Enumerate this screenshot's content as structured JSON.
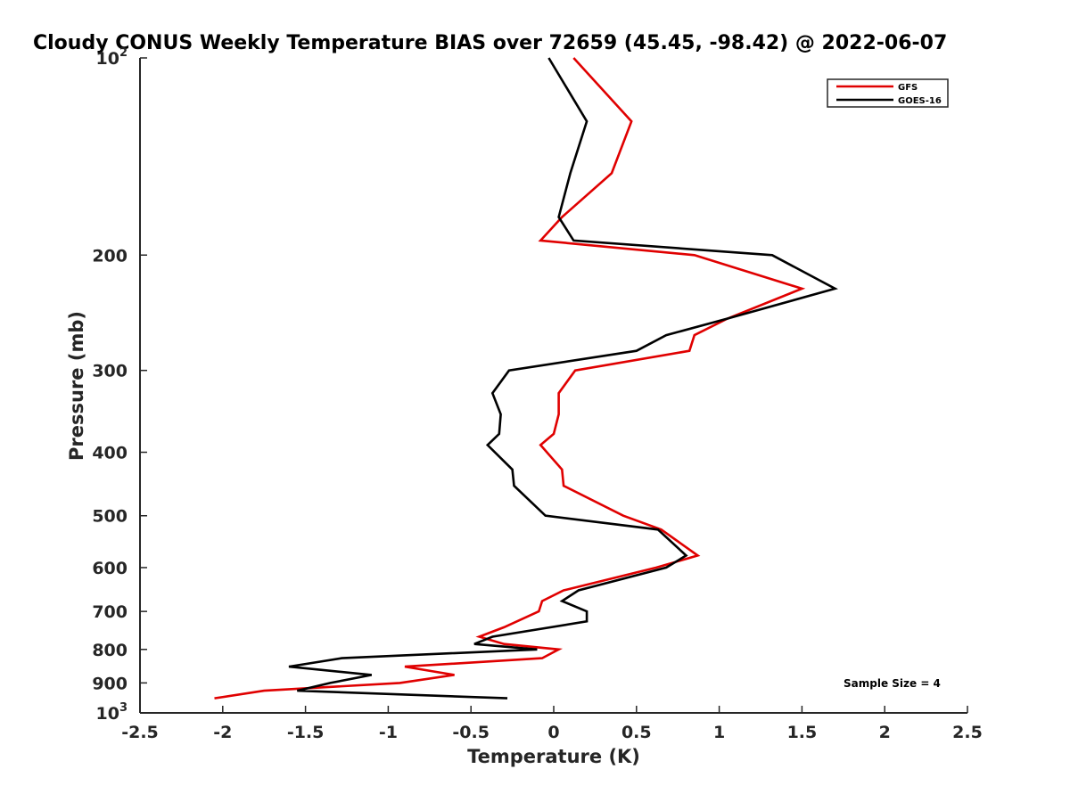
{
  "chart_data": {
    "type": "line",
    "title": "Cloudy CONUS Weekly Temperature BIAS over 72659 (45.45, -98.42) @ 2022-06-07",
    "xlabel": "Temperature (K)",
    "ylabel": "Pressure (mb)",
    "xlim": [
      -2.5,
      2.5
    ],
    "ylim": [
      100,
      1000
    ],
    "y_scale": "log",
    "y_reversed": true,
    "grid": false,
    "legend_position": "top-right",
    "x_ticks": [
      -2.5,
      -2,
      -1.5,
      -1,
      -0.5,
      0,
      0.5,
      1,
      1.5,
      2,
      2.5
    ],
    "x_tick_labels": [
      "-2.5",
      "-2",
      "-1.5",
      "-1",
      "-0.5",
      "0",
      "0.5",
      "1",
      "1.5",
      "2",
      "2.5"
    ],
    "y_ticks": [
      {
        "value": 100,
        "label": "10",
        "sup": "2"
      },
      {
        "value": 200,
        "label": "200",
        "sup": ""
      },
      {
        "value": 300,
        "label": "300",
        "sup": ""
      },
      {
        "value": 400,
        "label": "400",
        "sup": ""
      },
      {
        "value": 500,
        "label": "500",
        "sup": ""
      },
      {
        "value": 600,
        "label": "600",
        "sup": ""
      },
      {
        "value": 700,
        "label": "700",
        "sup": ""
      },
      {
        "value": 800,
        "label": "800",
        "sup": ""
      },
      {
        "value": 900,
        "label": "900",
        "sup": ""
      },
      {
        "value": 1000,
        "label": "10",
        "sup": "3"
      }
    ],
    "series": [
      {
        "name": "GFS",
        "color": "#e00000",
        "points": [
          [
            0.12,
            100
          ],
          [
            0.47,
            125
          ],
          [
            0.35,
            150
          ],
          [
            0.05,
            175
          ],
          [
            -0.08,
            190
          ],
          [
            0.85,
            200
          ],
          [
            1.5,
            225
          ],
          [
            1.05,
            250
          ],
          [
            0.85,
            265
          ],
          [
            0.82,
            280
          ],
          [
            0.13,
            300
          ],
          [
            0.03,
            325
          ],
          [
            0.03,
            350
          ],
          [
            0.0,
            375
          ],
          [
            -0.08,
            390
          ],
          [
            0.05,
            425
          ],
          [
            0.06,
            450
          ],
          [
            0.42,
            500
          ],
          [
            0.65,
            525
          ],
          [
            0.87,
            575
          ],
          [
            0.62,
            600
          ],
          [
            0.06,
            650
          ],
          [
            -0.07,
            675
          ],
          [
            -0.09,
            700
          ],
          [
            -0.3,
            740
          ],
          [
            -0.45,
            765
          ],
          [
            -0.3,
            785
          ],
          [
            0.03,
            800
          ],
          [
            -0.07,
            825
          ],
          [
            -0.9,
            850
          ],
          [
            -0.6,
            875
          ],
          [
            -0.93,
            900
          ],
          [
            -1.75,
            925
          ],
          [
            -2.05,
            950
          ]
        ]
      },
      {
        "name": "GOES-16",
        "color": "#000000",
        "points": [
          [
            -0.03,
            100
          ],
          [
            0.2,
            125
          ],
          [
            0.1,
            150
          ],
          [
            0.03,
            175
          ],
          [
            0.12,
            190
          ],
          [
            1.32,
            200
          ],
          [
            1.7,
            225
          ],
          [
            1.05,
            250
          ],
          [
            0.68,
            265
          ],
          [
            0.5,
            280
          ],
          [
            -0.27,
            300
          ],
          [
            -0.37,
            325
          ],
          [
            -0.32,
            350
          ],
          [
            -0.33,
            375
          ],
          [
            -0.4,
            390
          ],
          [
            -0.25,
            425
          ],
          [
            -0.24,
            450
          ],
          [
            -0.05,
            500
          ],
          [
            0.63,
            525
          ],
          [
            0.8,
            575
          ],
          [
            0.68,
            600
          ],
          [
            0.15,
            650
          ],
          [
            0.05,
            675
          ],
          [
            0.2,
            700
          ],
          [
            0.2,
            725
          ],
          [
            -0.37,
            765
          ],
          [
            -0.48,
            785
          ],
          [
            -0.1,
            800
          ],
          [
            -1.28,
            825
          ],
          [
            -1.6,
            850
          ],
          [
            -1.1,
            875
          ],
          [
            -1.35,
            900
          ],
          [
            -1.55,
            925
          ],
          [
            -0.28,
            950
          ]
        ]
      }
    ],
    "annotations": [
      "Sample Size = 4"
    ]
  }
}
